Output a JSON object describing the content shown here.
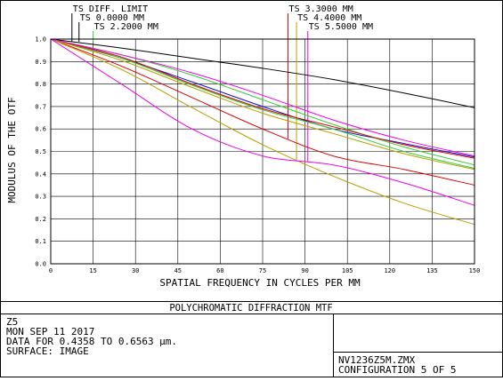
{
  "chart_data": {
    "type": "line",
    "title": "POLYCHROMATIC DIFFRACTION MTF",
    "xlabel": "SPATIAL FREQUENCY IN CYCLES PER MM",
    "ylabel": "MODULUS OF THE OTF",
    "xlim": [
      0,
      150
    ],
    "ylim": [
      0,
      1
    ],
    "x_ticks": [
      "0",
      "15",
      "30",
      "45",
      "60",
      "75",
      "90",
      "105",
      "120",
      "135",
      "150"
    ],
    "y_ticks": [
      "0.0",
      "0.1",
      "0.2",
      "0.3",
      "0.4",
      "0.5",
      "0.6",
      "0.7",
      "0.8",
      "0.9",
      "1.0"
    ],
    "grid": true,
    "legend_entries": [
      {
        "label": "TS DIFF. LIMIT",
        "color": "#000000",
        "lead_x": 7.5
      },
      {
        "label": "TS 0.0000 MM",
        "color": "#000000",
        "lead_x": 10
      },
      {
        "label": "TS 2.2000 MM",
        "color": "#33cc33",
        "lead_x": 15
      },
      {
        "label": "TS 3.3000 MM",
        "color": "#dd0000",
        "lead_x": 84
      },
      {
        "label": "TS 4.4000 MM",
        "color": "#b8a000",
        "lead_x": 87
      },
      {
        "label": "TS 5.5000 MM",
        "color": "#ee00ee",
        "lead_x": 91
      }
    ],
    "series": [
      {
        "color": "#000000",
        "x": [
          0,
          25,
          50,
          75,
          100,
          125,
          150
        ],
        "y": [
          1.0,
          0.96,
          0.915,
          0.87,
          0.82,
          0.76,
          0.695
        ]
      },
      {
        "color": "#1010cc",
        "x": [
          0,
          25,
          50,
          75,
          100,
          125,
          150
        ],
        "y": [
          1.0,
          0.915,
          0.81,
          0.7,
          0.6,
          0.535,
          0.475
        ]
      },
      {
        "color": "#33cc33",
        "x": [
          0,
          25,
          50,
          75,
          100,
          125,
          150
        ],
        "y": [
          1.0,
          0.93,
          0.84,
          0.73,
          0.62,
          0.52,
          0.44
        ]
      },
      {
        "color": "#33cc33",
        "x": [
          0,
          25,
          50,
          75,
          100,
          125,
          150
        ],
        "y": [
          1.0,
          0.915,
          0.795,
          0.685,
          0.6,
          0.5,
          0.425
        ]
      },
      {
        "color": "#dd0000",
        "x": [
          0,
          25,
          50,
          75,
          100,
          125,
          150
        ],
        "y": [
          1.0,
          0.92,
          0.8,
          0.69,
          0.61,
          0.53,
          0.47
        ]
      },
      {
        "color": "#dd0000",
        "x": [
          0,
          25,
          50,
          75,
          100,
          125,
          150
        ],
        "y": [
          1.0,
          0.88,
          0.74,
          0.6,
          0.48,
          0.42,
          0.35
        ]
      },
      {
        "color": "#b8a000",
        "x": [
          0,
          25,
          50,
          75,
          100,
          125,
          150
        ],
        "y": [
          1.0,
          0.905,
          0.785,
          0.67,
          0.58,
          0.49,
          0.42
        ]
      },
      {
        "color": "#b8a000",
        "x": [
          0,
          25,
          50,
          75,
          100,
          125,
          150
        ],
        "y": [
          1.0,
          0.865,
          0.695,
          0.53,
          0.39,
          0.27,
          0.175
        ]
      },
      {
        "color": "#ee00ee",
        "x": [
          0,
          25,
          50,
          75,
          100,
          125,
          150
        ],
        "y": [
          1.0,
          0.93,
          0.85,
          0.75,
          0.64,
          0.55,
          0.48
        ]
      },
      {
        "color": "#ee00ee",
        "x": [
          0,
          25,
          50,
          75,
          100,
          125,
          150
        ],
        "y": [
          1.0,
          0.8,
          0.6,
          0.48,
          0.44,
          0.36,
          0.26
        ]
      }
    ]
  },
  "info": {
    "line1": "Z5",
    "line2": "MON SEP 11 2017",
    "line3": "DATA FOR 0.4358 TO 0.6563 µm.",
    "line4": "SURFACE: IMAGE",
    "filename": "NV1236Z5M.ZMX",
    "configuration": "CONFIGURATION 5 OF 5"
  }
}
